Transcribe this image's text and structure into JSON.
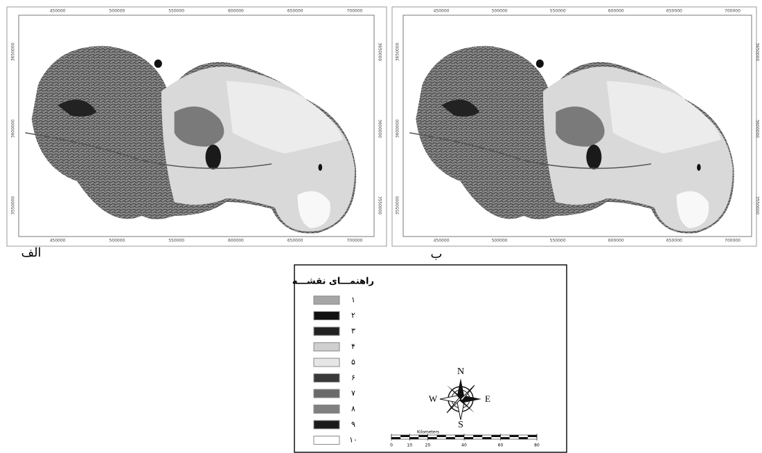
{
  "panels": [
    {
      "label": "الف",
      "x_ticks": [
        450000,
        500000,
        550000,
        600000,
        650000,
        700000
      ],
      "y_ticks": [
        3650000,
        3600000,
        3550000
      ]
    },
    {
      "label": "ب",
      "x_ticks": [
        450000,
        500000,
        550000,
        600000,
        650000,
        700000
      ],
      "y_ticks": [
        3650000,
        3600000,
        3550000
      ]
    }
  ],
  "legend": {
    "title": "راهنمـــای نقشـــه",
    "items": [
      {
        "label": "۱",
        "color": "#a6a6a6"
      },
      {
        "label": "۲",
        "color": "#111111"
      },
      {
        "label": "۳",
        "color": "#222222"
      },
      {
        "label": "۴",
        "color": "#cfcfcf"
      },
      {
        "label": "۵",
        "color": "#e6e6e6"
      },
      {
        "label": "۶",
        "color": "#3a3a3a"
      },
      {
        "label": "۷",
        "color": "#6a6a6a"
      },
      {
        "label": "۸",
        "color": "#808080"
      },
      {
        "label": "۹",
        "color": "#1a1a1a"
      },
      {
        "label": "۱۰",
        "color": "#ffffff"
      }
    ]
  },
  "compass": {
    "north": "N",
    "south": "S",
    "east": "E",
    "west": "W"
  },
  "scale_bar": {
    "unit": "Kilometers",
    "ticks": [
      0,
      10,
      20,
      40,
      60,
      80
    ]
  }
}
